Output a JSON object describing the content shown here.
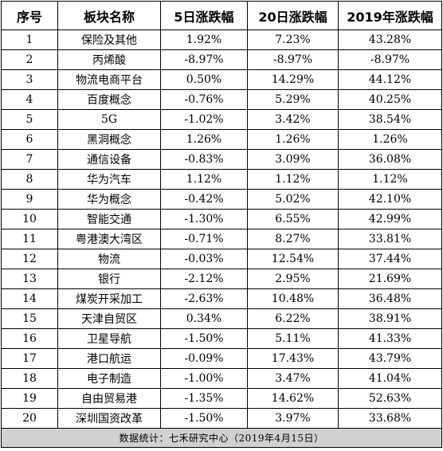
{
  "headers": [
    "序号",
    "板块名称",
    "5日涨跌幅",
    "20日涨跌幅",
    "2019年涨跌幅"
  ],
  "rows": [
    [
      "1",
      "保险及其他",
      "1.92%",
      "7.23%",
      "43.28%"
    ],
    [
      "2",
      "丙烯酸",
      "-8.97%",
      "-8.97%",
      "-8.97%"
    ],
    [
      "3",
      "物流电商平台",
      "0.50%",
      "14.29%",
      "44.12%"
    ],
    [
      "4",
      "百度概念",
      "-0.76%",
      "5.29%",
      "40.25%"
    ],
    [
      "5",
      "5G",
      "-1.02%",
      "3.42%",
      "38.54%"
    ],
    [
      "6",
      "黑洞概念",
      "1.26%",
      "1.26%",
      "1.26%"
    ],
    [
      "7",
      "通信设备",
      "-0.83%",
      "3.09%",
      "36.08%"
    ],
    [
      "8",
      "华为汽车",
      "1.12%",
      "1.12%",
      "1.12%"
    ],
    [
      "9",
      "华为概念",
      "-0.42%",
      "5.02%",
      "42.10%"
    ],
    [
      "10",
      "智能交通",
      "-1.30%",
      "6.55%",
      "42.99%"
    ],
    [
      "11",
      "粤港澳大湾区",
      "-0.71%",
      "8.27%",
      "33.81%"
    ],
    [
      "12",
      "物流",
      "-0.03%",
      "12.54%",
      "37.44%"
    ],
    [
      "13",
      "银行",
      "-2.12%",
      "2.95%",
      "21.69%"
    ],
    [
      "14",
      "煤炭开采加工",
      "-2.63%",
      "10.48%",
      "36.48%"
    ],
    [
      "15",
      "天津自贸区",
      "0.34%",
      "6.22%",
      "38.91%"
    ],
    [
      "16",
      "卫星导航",
      "-1.50%",
      "5.11%",
      "41.33%"
    ],
    [
      "17",
      "港口航运",
      "-0.09%",
      "17.43%",
      "43.79%"
    ],
    [
      "18",
      "电子制造",
      "-1.00%",
      "3.47%",
      "41.04%"
    ],
    [
      "19",
      "自由贸易港",
      "-1.35%",
      "14.62%",
      "52.63%"
    ],
    [
      "20",
      "深圳国资改革",
      "-1.50%",
      "3.97%",
      "33.68%"
    ]
  ],
  "footer": "数据统计：七禾研究中心（2019年4月15日）"
}
